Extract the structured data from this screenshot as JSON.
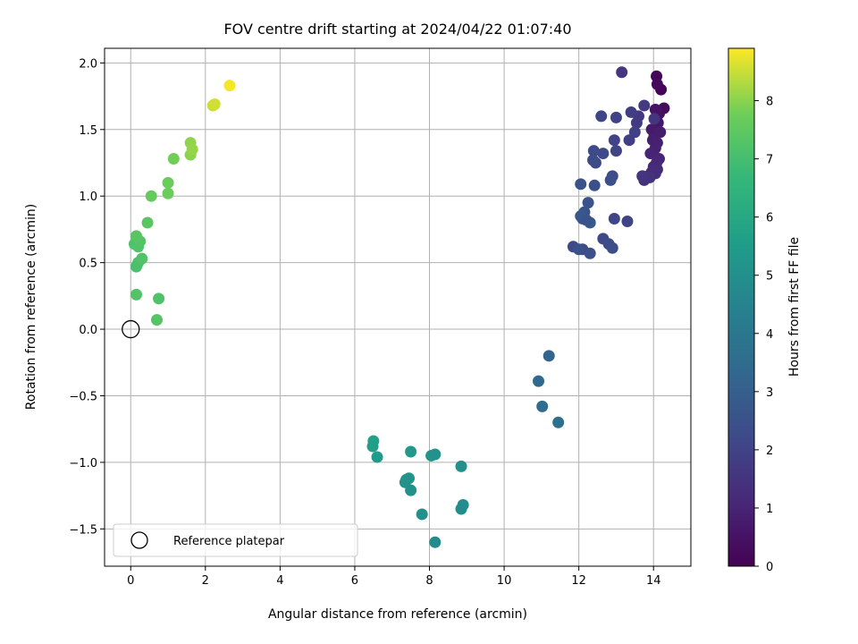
{
  "chart_data": {
    "type": "scatter",
    "title": "FOV centre drift starting at 2024/04/22 01:07:40",
    "xlabel": "Angular distance from reference (arcmin)",
    "ylabel": "Rotation from reference (arcmin)",
    "xlim": [
      -0.7,
      15.0
    ],
    "ylim": [
      -1.78,
      2.11
    ],
    "xticks": [
      0,
      2,
      4,
      6,
      8,
      10,
      12,
      14
    ],
    "xtick_labels": [
      "0",
      "2",
      "4",
      "6",
      "8",
      "10",
      "12",
      "14"
    ],
    "yticks": [
      -1.5,
      -1.0,
      -0.5,
      0.0,
      0.5,
      1.0,
      1.5,
      2.0
    ],
    "ytick_labels": [
      "−1.5",
      "−1.0",
      "−0.5",
      "0.0",
      "0.5",
      "1.0",
      "1.5",
      "2.0"
    ],
    "grid": true,
    "colormap": "viridis",
    "colorbar": {
      "label": "Hours from first FF file",
      "range": [
        0,
        8.9
      ],
      "ticks": [
        0,
        1,
        2,
        3,
        4,
        5,
        6,
        7,
        8
      ],
      "tick_labels": [
        "0",
        "1",
        "2",
        "3",
        "4",
        "5",
        "6",
        "7",
        "8"
      ]
    },
    "legend": {
      "position": "lower-left",
      "entries": [
        "Reference platepar"
      ]
    },
    "reference_point": {
      "x": 0.0,
      "y": 0.0,
      "marker": "open-circle"
    },
    "series": [
      {
        "x": [
          14.08,
          14.2,
          14.1,
          14.28,
          14.15,
          14.05,
          14.12,
          13.95,
          14.02,
          14.18,
          13.98,
          14.1,
          14.05,
          13.92,
          14.15,
          14.08,
          14.0,
          14.1,
          13.95,
          14.05,
          13.85,
          13.75,
          13.9,
          13.7,
          14.02,
          13.15,
          13.6,
          13.75,
          13.55,
          13.4,
          13.35,
          13.5,
          13.0,
          12.95,
          13.0,
          12.6,
          12.65,
          12.45,
          12.38,
          12.4,
          12.9,
          12.85,
          12.42,
          12.05,
          12.25,
          12.15,
          12.1,
          12.3,
          12.05,
          12.95,
          13.3,
          11.85,
          12.1,
          12.3,
          12.65,
          12.8,
          12.9,
          12.0,
          12.2,
          11.2,
          10.92,
          11.02,
          11.45,
          6.5,
          6.48,
          6.6,
          7.5,
          8.05,
          8.15,
          8.85,
          7.45,
          7.35,
          7.38,
          7.5,
          8.9,
          8.85,
          7.8,
          8.15,
          0.7,
          0.15,
          0.75,
          0.2,
          0.15,
          0.3,
          0.1,
          0.2,
          0.25,
          0.15,
          0.45,
          1.0,
          0.55,
          1.0,
          1.15,
          1.6,
          1.6,
          1.65,
          2.2,
          2.25,
          2.65
        ],
        "y": [
          1.9,
          1.8,
          1.84,
          1.66,
          1.62,
          1.65,
          1.55,
          1.5,
          1.45,
          1.48,
          1.42,
          1.4,
          1.36,
          1.32,
          1.28,
          1.25,
          1.22,
          1.2,
          1.18,
          1.17,
          1.15,
          1.12,
          1.14,
          1.15,
          1.58,
          1.93,
          1.6,
          1.68,
          1.55,
          1.63,
          1.42,
          1.48,
          1.59,
          1.42,
          1.34,
          1.6,
          1.32,
          1.25,
          1.27,
          1.34,
          1.15,
          1.12,
          1.08,
          1.09,
          0.95,
          0.88,
          0.83,
          0.8,
          0.85,
          0.83,
          0.81,
          0.62,
          0.6,
          0.57,
          0.68,
          0.64,
          0.61,
          0.6,
          0.82,
          -0.2,
          -0.39,
          -0.58,
          -0.7,
          -0.84,
          -0.88,
          -0.96,
          -0.92,
          -0.95,
          -0.94,
          -1.03,
          -1.12,
          -1.15,
          -1.13,
          -1.21,
          -1.32,
          -1.35,
          -1.39,
          -1.6,
          0.07,
          0.26,
          0.23,
          0.5,
          0.47,
          0.53,
          0.64,
          0.62,
          0.66,
          0.7,
          0.8,
          1.02,
          1.0,
          1.1,
          1.28,
          1.31,
          1.4,
          1.35,
          1.68,
          1.69,
          1.83
        ],
        "c": [
          0.08,
          0.12,
          0.2,
          0.3,
          0.4,
          0.5,
          0.6,
          0.7,
          0.75,
          0.8,
          0.85,
          0.9,
          0.95,
          1.0,
          1.05,
          1.1,
          1.15,
          1.2,
          1.25,
          1.3,
          1.35,
          1.4,
          1.45,
          1.5,
          1.55,
          1.6,
          1.65,
          1.7,
          1.75,
          1.8,
          1.85,
          1.9,
          1.95,
          2.0,
          2.05,
          2.1,
          2.15,
          2.2,
          2.25,
          2.3,
          2.35,
          2.4,
          2.45,
          2.5,
          2.55,
          2.6,
          2.65,
          2.7,
          2.75,
          2.1,
          2.0,
          2.2,
          2.3,
          2.4,
          2.15,
          2.25,
          2.35,
          2.5,
          2.6,
          3.2,
          3.4,
          3.55,
          3.7,
          5.7,
          5.6,
          5.5,
          5.35,
          5.2,
          5.1,
          5.0,
          5.25,
          5.15,
          5.1,
          5.05,
          4.9,
          4.85,
          5.0,
          4.8,
          7.3,
          7.25,
          7.2,
          7.15,
          7.1,
          7.2,
          7.15,
          7.25,
          7.3,
          7.35,
          7.4,
          7.7,
          7.6,
          7.7,
          7.8,
          8.0,
          8.05,
          8.1,
          8.5,
          8.55,
          8.85
        ]
      }
    ]
  }
}
